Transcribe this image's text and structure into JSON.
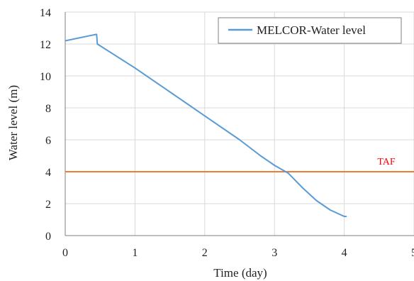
{
  "chart_data": {
    "type": "line",
    "title": "",
    "xlabel": "Time (day)",
    "ylabel": "Water level (m)",
    "xlim": [
      0,
      5
    ],
    "ylim": [
      0,
      14
    ],
    "xticks": [
      0,
      1,
      2,
      3,
      4,
      5
    ],
    "yticks": [
      0,
      2,
      4,
      6,
      8,
      10,
      12,
      14
    ],
    "grid": true,
    "legend_position": "top-right",
    "series": [
      {
        "name": "MELCOR-Water level",
        "color": "#5B9BD5",
        "x": [
          0.0,
          0.44,
          0.45,
          0.46,
          1.0,
          1.5,
          2.0,
          2.5,
          2.8,
          3.0,
          3.2,
          3.4,
          3.6,
          3.8,
          4.0,
          4.03
        ],
        "y": [
          12.2,
          12.6,
          12.6,
          12.0,
          10.5,
          9.0,
          7.5,
          6.0,
          5.0,
          4.4,
          3.9,
          3.0,
          2.2,
          1.6,
          1.2,
          1.2
        ]
      }
    ],
    "reference_lines": [
      {
        "label": "TAF",
        "y": 4.0,
        "color": "#ED7D31",
        "label_color": "#FF0000"
      }
    ]
  }
}
